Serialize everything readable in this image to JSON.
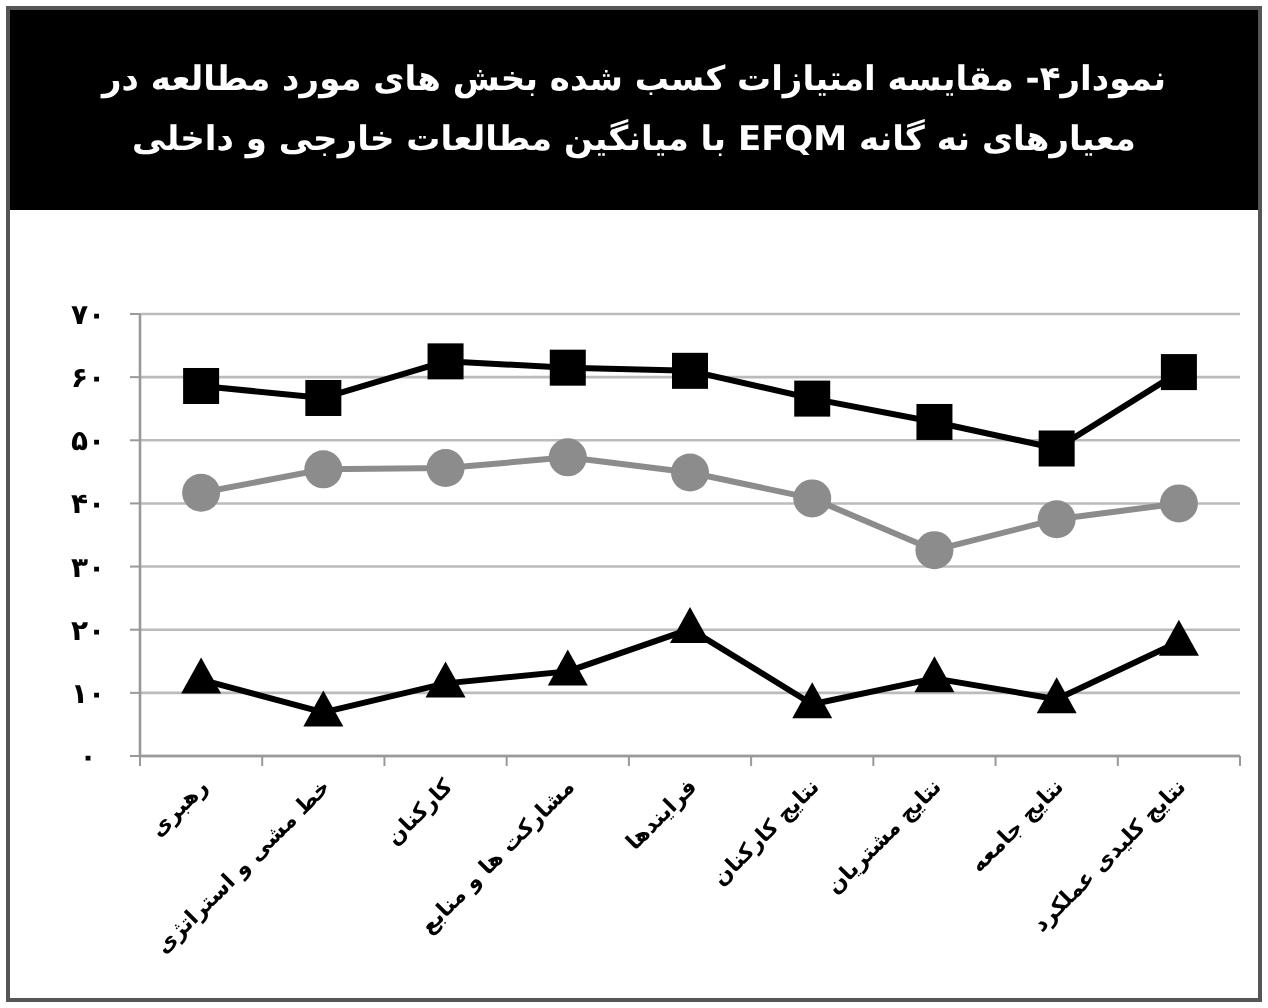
{
  "chart_data": {
    "type": "line",
    "title": "نمودار۴- مقایسه امتیازات کسب شده بخش های مورد مطالعه در معیارهای نه گانه EFQM با میانگین مطالعات خارجی و داخلی",
    "categories": [
      "رهبری",
      "خط مشی و استراتژی",
      "کارکنان",
      "مشارکت ها و منابع",
      "فرایندها",
      "نتایج کارکنان",
      "نتایج مشتریان",
      "نتایج جامعه",
      "نتایج کلیدی عملکرد"
    ],
    "series": [
      {
        "color": "#000000",
        "marker": "square",
        "values": [
          58.6,
          56.7,
          62.5,
          61.5,
          61.0,
          56.6,
          52.9,
          48.7,
          60.8
        ]
      },
      {
        "color": "#8c8c8c",
        "marker": "circle",
        "values": [
          41.7,
          45.4,
          45.6,
          47.3,
          44.9,
          40.8,
          32.6,
          37.5,
          40.0
        ]
      },
      {
        "color": "#000000",
        "marker": "triangle",
        "values": [
          12.1,
          6.9,
          11.5,
          13.4,
          20.1,
          8.2,
          12.3,
          9.0,
          18.1
        ]
      }
    ],
    "ylim": [
      0,
      70
    ],
    "yticks": [
      {
        "value": 0,
        "label": "۰"
      },
      {
        "value": 10,
        "label": "۱۰"
      },
      {
        "value": 20,
        "label": "۲۰"
      },
      {
        "value": 30,
        "label": "۳۰"
      },
      {
        "value": 40,
        "label": "۴۰"
      },
      {
        "value": 50,
        "label": "۵۰"
      },
      {
        "value": 60,
        "label": "۶۰"
      },
      {
        "value": 70,
        "label": "۷۰"
      }
    ],
    "grid": "y",
    "line_style": "solid"
  }
}
